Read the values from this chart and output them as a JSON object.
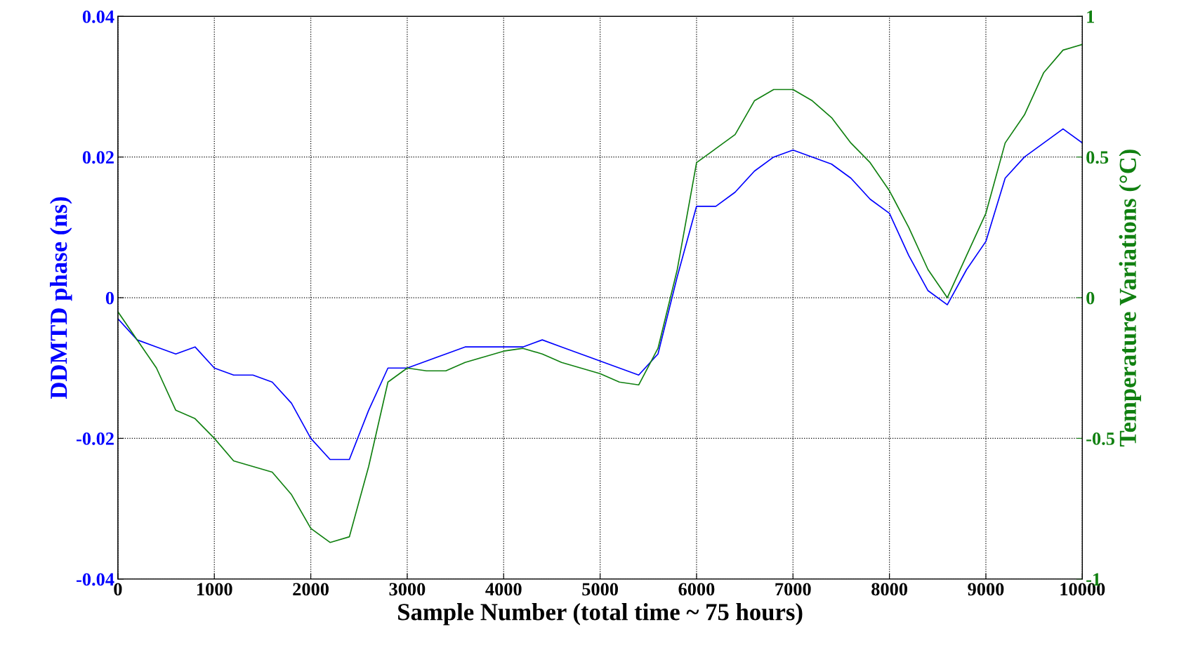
{
  "chart_data": {
    "type": "line",
    "xlabel": "Sample Number (total time ~ 75 hours)",
    "ylabel": "DDMTD phase (ns)",
    "y2label": "Temperature Variations (°C)",
    "xlim": [
      0,
      10000
    ],
    "xticks": [
      0,
      1000,
      2000,
      3000,
      4000,
      5000,
      6000,
      7000,
      8000,
      9000,
      10000
    ],
    "ylim": [
      -0.04,
      0.04
    ],
    "yticks": [
      -0.04,
      -0.02,
      0,
      0.02,
      0.04
    ],
    "y2lim": [
      -1,
      1
    ],
    "y2ticks": [
      -1,
      -0.5,
      0,
      0.5,
      1
    ],
    "grid": true,
    "legend": false,
    "x": [
      0,
      200,
      400,
      600,
      800,
      1000,
      1200,
      1400,
      1600,
      1800,
      2000,
      2200,
      2400,
      2600,
      2800,
      3000,
      3200,
      3400,
      3600,
      3800,
      4000,
      4200,
      4400,
      4600,
      4800,
      5000,
      5200,
      5400,
      5600,
      5800,
      6000,
      6200,
      6400,
      6600,
      6800,
      7000,
      7200,
      7400,
      7600,
      7800,
      8000,
      8200,
      8400,
      8600,
      8800,
      9000,
      9200,
      9400,
      9600,
      9800,
      10000
    ],
    "series": [
      {
        "color": "#0000ff",
        "values": [
          -0.003,
          -0.006,
          -0.007,
          -0.008,
          -0.007,
          -0.01,
          -0.011,
          -0.011,
          -0.012,
          -0.015,
          -0.02,
          -0.023,
          -0.023,
          -0.016,
          -0.01,
          -0.01,
          -0.009,
          -0.008,
          -0.007,
          -0.007,
          -0.007,
          -0.007,
          -0.006,
          -0.007,
          -0.008,
          -0.009,
          -0.01,
          -0.011,
          -0.008,
          0.003,
          0.013,
          0.013,
          0.015,
          0.018,
          0.02,
          0.021,
          0.02,
          0.019,
          0.017,
          0.014,
          0.012,
          0.006,
          0.001,
          -0.001,
          0.004,
          0.008,
          0.017,
          0.02,
          0.022,
          0.024,
          0.022
        ]
      },
      {
        "color": "#108010",
        "axis": "y2",
        "values": [
          -0.05,
          -0.15,
          -0.25,
          -0.4,
          -0.43,
          -0.5,
          -0.58,
          -0.6,
          -0.62,
          -0.7,
          -0.82,
          -0.87,
          -0.85,
          -0.6,
          -0.3,
          -0.25,
          -0.26,
          -0.26,
          -0.23,
          -0.21,
          -0.19,
          -0.18,
          -0.2,
          -0.23,
          -0.25,
          -0.27,
          -0.3,
          -0.31,
          -0.18,
          0.1,
          0.48,
          0.53,
          0.58,
          0.7,
          0.74,
          0.74,
          0.7,
          0.64,
          0.55,
          0.48,
          0.38,
          0.25,
          0.1,
          0.0,
          0.15,
          0.3,
          0.55,
          0.65,
          0.8,
          0.88,
          0.9
        ]
      }
    ]
  }
}
